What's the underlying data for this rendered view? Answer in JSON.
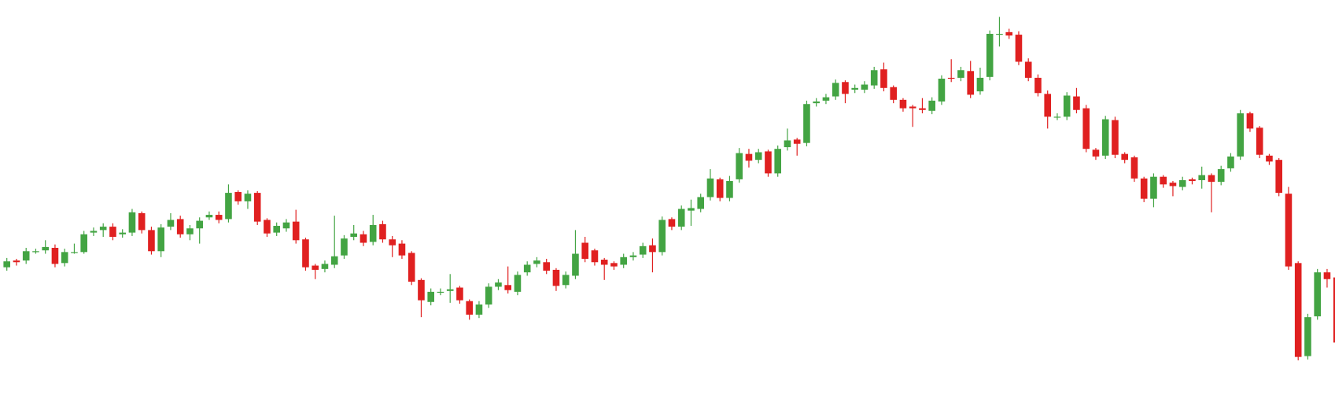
{
  "chart_data": {
    "type": "candlestick",
    "up_color": "#43a443",
    "down_color": "#e02020",
    "ylim": [
      0,
      480
    ],
    "open": [
      164,
      172,
      172,
      183,
      184,
      187,
      169,
      182,
      182,
      205,
      208,
      212,
      203,
      205,
      228,
      208,
      183,
      212,
      221,
      203,
      210,
      223,
      226,
      221,
      253,
      242,
      252,
      220,
      205,
      210,
      218,
      197,
      166,
      162,
      167,
      178,
      200,
      203,
      194,
      215,
      197,
      192,
      181,
      149,
      123,
      135,
      136,
      140,
      124,
      108,
      120,
      141,
      143,
      135,
      158,
      168,
      170,
      161,
      143,
      154,
      193,
      184,
      173,
      169,
      167,
      176,
      179,
      190,
      182,
      221,
      212,
      231,
      233,
      247,
      268,
      246,
      268,
      298,
      291,
      301,
      275,
      306,
      315,
      311,
      358,
      361,
      366,
      383,
      374,
      374,
      379,
      398,
      377,
      362,
      354,
      352,
      349,
      360,
      388,
      388,
      396,
      372,
      389,
      440,
      442,
      439,
      407,
      388,
      369,
      342,
      342,
      366,
      352,
      303,
      296,
      338,
      298,
      294,
      269,
      245,
      271,
      264,
      259,
      268,
      267,
      273,
      265,
      281,
      295,
      346,
      329,
      296,
      291,
      251,
      169,
      59,
      106,
      158,
      152
    ],
    "high": [
      175,
      174,
      187,
      186,
      196,
      191,
      186,
      192,
      207,
      211,
      216,
      216,
      209,
      233,
      230,
      212,
      215,
      228,
      225,
      214,
      223,
      230,
      230,
      262,
      255,
      255,
      254,
      222,
      217,
      221,
      232,
      199,
      168,
      172,
      225,
      202,
      214,
      207,
      226,
      219,
      201,
      196,
      183,
      151,
      139,
      139,
      156,
      142,
      126,
      124,
      145,
      150,
      165,
      159,
      171,
      176,
      174,
      163,
      159,
      208,
      200,
      186,
      175,
      171,
      180,
      182,
      193,
      198,
      224,
      223,
      237,
      244,
      251,
      280,
      270,
      272,
      305,
      304,
      304,
      303,
      308,
      328,
      317,
      361,
      364,
      369,
      386,
      385,
      380,
      384,
      401,
      406,
      379,
      364,
      356,
      364,
      365,
      391,
      410,
      401,
      408,
      400,
      444,
      460,
      446,
      443,
      411,
      392,
      373,
      346,
      371,
      376,
      356,
      305,
      343,
      342,
      300,
      296,
      271,
      275,
      273,
      266,
      271,
      270,
      283,
      275,
      284,
      299,
      350,
      348,
      331,
      298,
      293,
      259,
      171,
      109,
      162,
      162,
      180
    ],
    "low": [
      160,
      166,
      168,
      180,
      180,
      164,
      165,
      180,
      180,
      201,
      200,
      196,
      199,
      201,
      204,
      179,
      176,
      208,
      199,
      196,
      192,
      220,
      216,
      217,
      238,
      233,
      214,
      200,
      201,
      206,
      192,
      160,
      150,
      158,
      163,
      174,
      196,
      189,
      190,
      193,
      176,
      174,
      143,
      105,
      119,
      131,
      122,
      121,
      102,
      104,
      116,
      137,
      133,
      131,
      154,
      164,
      156,
      136,
      139,
      150,
      170,
      166,
      149,
      161,
      163,
      172,
      175,
      158,
      178,
      208,
      208,
      213,
      229,
      243,
      242,
      242,
      264,
      282,
      287,
      271,
      271,
      302,
      296,
      307,
      354,
      357,
      362,
      358,
      370,
      370,
      375,
      372,
      358,
      348,
      330,
      346,
      345,
      356,
      383,
      384,
      364,
      368,
      385,
      425,
      434,
      403,
      384,
      366,
      328,
      338,
      338,
      346,
      300,
      291,
      292,
      293,
      287,
      265,
      241,
      235,
      258,
      248,
      255,
      262,
      257,
      229,
      261,
      277,
      291,
      324,
      293,
      285,
      248,
      161,
      54,
      55,
      102,
      140,
      71
    ],
    "close": [
      171,
      170,
      183,
      183,
      188,
      168,
      182,
      182,
      203,
      207,
      212,
      200,
      205,
      229,
      208,
      183,
      211,
      220,
      203,
      210,
      219,
      226,
      220,
      252,
      242,
      251,
      218,
      204,
      213,
      217,
      196,
      164,
      161,
      168,
      177,
      198,
      204,
      193,
      214,
      197,
      190,
      178,
      147,
      125,
      135,
      135,
      138,
      125,
      108,
      120,
      141,
      146,
      137,
      155,
      167,
      172,
      160,
      142,
      155,
      180,
      174,
      170,
      167,
      165,
      176,
      178,
      189,
      182,
      220,
      212,
      233,
      234,
      247,
      269,
      246,
      266,
      299,
      290,
      300,
      275,
      304,
      314,
      310,
      357,
      360,
      365,
      382,
      369,
      376,
      380,
      397,
      376,
      362,
      352,
      352,
      350,
      361,
      387,
      387,
      397,
      368,
      388,
      440,
      440,
      438,
      407,
      388,
      370,
      342,
      342,
      367,
      350,
      304,
      295,
      339,
      297,
      291,
      269,
      245,
      271,
      262,
      260,
      267,
      266,
      273,
      265,
      280,
      295,
      346,
      328,
      297,
      289,
      252,
      165,
      58,
      105,
      158,
      150,
      75
    ]
  }
}
